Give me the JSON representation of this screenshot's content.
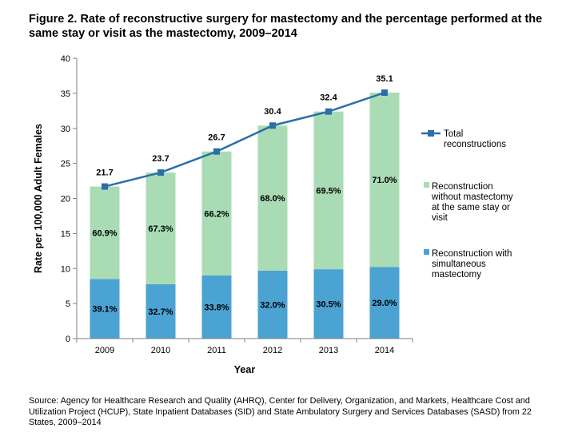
{
  "title": "Figure 2. Rate of reconstructive surgery for mastectomy and the percentage performed at the same stay or visit as the mastectomy, 2009–2014",
  "source": "Source: Agency for Healthcare Research and Quality (AHRQ), Center for Delivery, Organization, and Markets, Healthcare Cost and Utilization Project (HCUP), State Inpatient Databases (SID) and State Ambulatory Surgery and Services Databases (SASD) from 22 States, 2009–2014",
  "colors": {
    "simultaneous": "#4aa3d3",
    "without": "#a9dcb5",
    "total_line": "#2a6fa8",
    "axis": "#808080"
  },
  "chart_data": {
    "type": "bar",
    "stacked": true,
    "categories": [
      "2009",
      "2010",
      "2011",
      "2012",
      "2013",
      "2014"
    ],
    "xlabel": "Year",
    "ylabel": "Rate per 100,000 Adult Females",
    "ylim": [
      0,
      40
    ],
    "yticks": [
      "0",
      "5",
      "10",
      "15",
      "20",
      "25",
      "30",
      "35",
      "40"
    ],
    "grid": false,
    "legend_position": "right",
    "series": [
      {
        "name": "Reconstruction with simultaneous mastectomy",
        "legend_lines": [
          "Reconstruction with",
          "simultaneous",
          "mastectomy"
        ],
        "values": [
          8.5,
          7.75,
          9.0,
          9.7,
          9.9,
          10.2
        ],
        "labels": [
          "39.1%",
          "32.7%",
          "33.8%",
          "32.0%",
          "30.5%",
          "29.0%"
        ]
      },
      {
        "name": "Reconstruction without mastectomy at the same stay or visit",
        "legend_lines": [
          "Reconstruction",
          "without mastectomy",
          "at the same stay or",
          "visit"
        ],
        "values": [
          13.2,
          15.95,
          17.7,
          20.7,
          22.5,
          24.9
        ],
        "labels": [
          "60.9%",
          "67.3%",
          "66.2%",
          "68.0%",
          "69.5%",
          "71.0%"
        ]
      },
      {
        "name": "Total reconstructions",
        "legend_lines": [
          "Total",
          "reconstructions"
        ],
        "type": "line",
        "values": [
          21.7,
          23.7,
          26.7,
          30.4,
          32.4,
          35.1
        ],
        "labels": [
          "21.7",
          "23.7",
          "26.7",
          "30.4",
          "32.4",
          "35.1"
        ]
      }
    ]
  }
}
